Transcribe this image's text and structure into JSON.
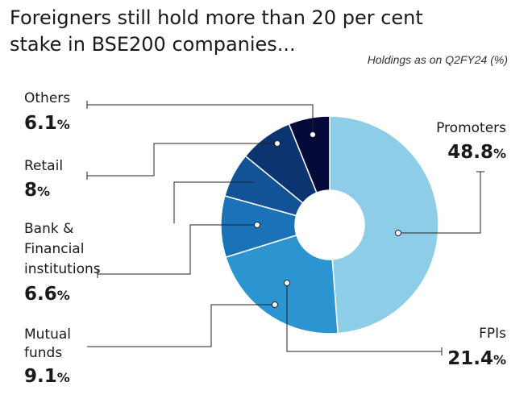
{
  "chart_data": {
    "type": "pie",
    "variant": "donut",
    "title": "Foreigners still hold more than 20 per cent stake in BSE200 companies...",
    "subtitle": "Holdings as on Q2FY24 (%)",
    "unit": "%",
    "slices": [
      {
        "name": "Promoters",
        "value": 48.8,
        "color": "#8ecde8"
      },
      {
        "name": "FPIs",
        "value": 21.4,
        "color": "#2c94d0"
      },
      {
        "name": "Mutual funds",
        "value": 9.1,
        "color": "#1a73b8"
      },
      {
        "name": "Bank & Financial institutions",
        "value": 6.6,
        "color": "#125296"
      },
      {
        "name": "Retail",
        "value": 8,
        "color": "#0c3470"
      },
      {
        "name": "Others",
        "value": 6.1,
        "color": "#050a3a"
      }
    ],
    "labels": [
      {
        "lines": [
          "Promoters"
        ],
        "value": "48.8",
        "unit": "%"
      },
      {
        "lines": [
          "FPIs"
        ],
        "value": "21.4",
        "unit": "%"
      },
      {
        "lines": [
          "Mutual",
          "funds"
        ],
        "value": "9.1",
        "unit": "%"
      },
      {
        "lines": [
          "Bank &",
          "Financial",
          "institutions"
        ],
        "value": "6.6",
        "unit": "%"
      },
      {
        "lines": [
          "Retail"
        ],
        "value": "8",
        "unit": "%"
      },
      {
        "lines": [
          "Others"
        ],
        "value": "6.1",
        "unit": "%"
      }
    ]
  }
}
